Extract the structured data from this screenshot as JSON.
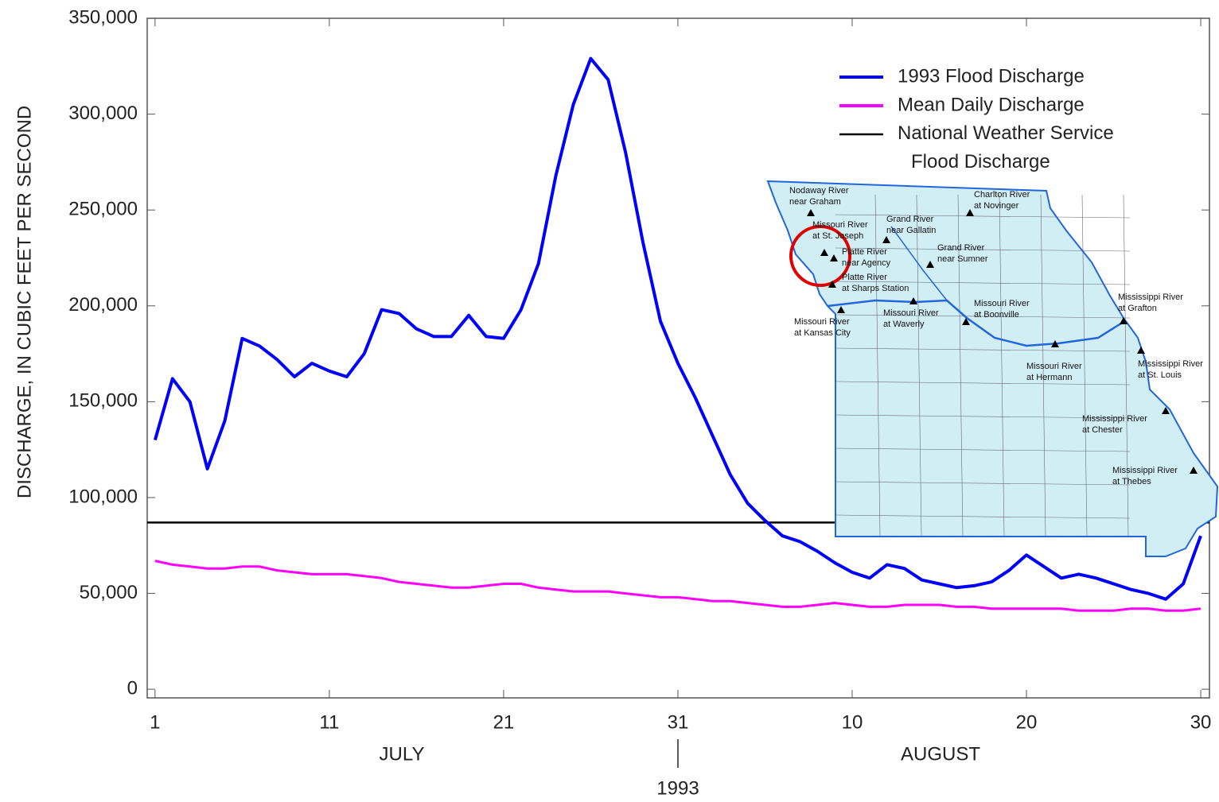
{
  "chart_data": {
    "type": "line",
    "y_label": "DISCHARGE, IN CUBIC FEET PER SECOND",
    "x_groups": [
      "JULY",
      "AUGUST"
    ],
    "x_year": "1993",
    "x": [
      1,
      2,
      3,
      4,
      5,
      6,
      7,
      8,
      9,
      10,
      11,
      12,
      13,
      14,
      15,
      16,
      17,
      18,
      19,
      20,
      21,
      22,
      23,
      24,
      25,
      26,
      27,
      28,
      29,
      30,
      31,
      32,
      33,
      34,
      35,
      36,
      37,
      38,
      39,
      40,
      41,
      42,
      43,
      44,
      45,
      46,
      47,
      48,
      49,
      50,
      51,
      52,
      53,
      54,
      55,
      56,
      57,
      58,
      59,
      60,
      61
    ],
    "xlim": [
      0.55,
      61.5
    ],
    "xticks": [
      1,
      11,
      21,
      31,
      {
        "value": 41,
        "label": "10"
      },
      {
        "value": 51,
        "label": "20"
      },
      {
        "value": 61,
        "label": "30"
      }
    ],
    "ylim": [
      -4500,
      350000
    ],
    "yticks": [
      0,
      {
        "value": 50000,
        "label": "50,000"
      },
      {
        "value": 100000,
        "label": "100,000"
      },
      {
        "value": 150000,
        "label": "150,000"
      },
      {
        "value": 200000,
        "label": "200,000"
      },
      {
        "value": 250000,
        "label": "250,000"
      },
      {
        "value": 300000,
        "label": "300,000"
      },
      {
        "value": 350000,
        "label": "350,000"
      }
    ],
    "series": [
      {
        "name": "1993 Flood Discharge",
        "color": "#0000ff",
        "values": [
          130000,
          162000,
          150000,
          115000,
          140000,
          183000,
          179000,
          172000,
          163000,
          170000,
          166000,
          163000,
          175000,
          198000,
          196000,
          188000,
          184000,
          184000,
          195000,
          184000,
          183000,
          198000,
          222000,
          268000,
          305000,
          329000,
          318000,
          280000,
          233000,
          192000,
          170000,
          152000,
          132000,
          112000,
          97000,
          88000,
          80000,
          77000,
          72000,
          66000,
          61000,
          58000,
          65000,
          63000,
          57000,
          55000,
          53000,
          54000,
          56000,
          62000,
          70000,
          64000,
          58000,
          60000,
          58000,
          55000,
          52000,
          50000,
          47000,
          55000,
          80000
        ]
      },
      {
        "name": "Mean Daily Discharge",
        "color": "#ff00ff",
        "values": [
          67000,
          65000,
          64000,
          63000,
          63000,
          64000,
          64000,
          62000,
          61000,
          60000,
          60000,
          60000,
          59000,
          58000,
          56000,
          55000,
          54000,
          53000,
          53000,
          54000,
          55000,
          55000,
          53000,
          52000,
          51000,
          51000,
          51000,
          50000,
          49000,
          48000,
          48000,
          47000,
          46000,
          46000,
          45000,
          44000,
          43000,
          43000,
          44000,
          45000,
          44000,
          43000,
          43000,
          44000,
          44000,
          44000,
          43000,
          43000,
          42000,
          42000,
          42000,
          42000,
          42000,
          41000,
          41000,
          41000,
          42000,
          42000,
          41000,
          41000,
          42000
        ]
      }
    ],
    "reference_line": {
      "name": "National Weather Service\nFlood Discharge",
      "value": 87000,
      "color": "#000000"
    },
    "inset_labels": [
      "Nodaway River\nnear Graham",
      "Charlton River\nat Novinger",
      "Missouri River\nat St. Joseph",
      "Grand River\nnear Gallatin",
      "Platte River\nnear Agency",
      "Grand River\nnear Sumner",
      "Platte River\nat Sharps Station",
      "Missouri River\nat Boonville",
      "Missouri River\nat Waverly",
      "Missouri River\nat Kansas City",
      "Mississippi River\nat Grafton",
      "Mississippi River\nat St. Louis",
      "Missouri River\nat Hermann",
      "Mississippi River\nat Chester",
      "Mississippi River\nat Thebes"
    ]
  }
}
